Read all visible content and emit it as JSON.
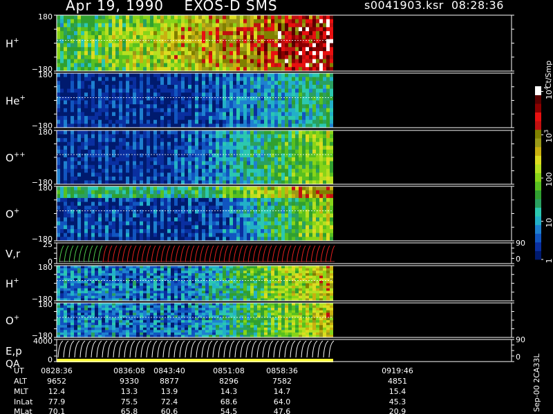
{
  "header": {
    "title": "Apr 19, 1990    EXOS-D SMS",
    "file_info": "s0041903.ksr  08:28:36"
  },
  "chart_data": {
    "type": "heatmap",
    "panels": [
      {
        "label": "H",
        "sup": "+",
        "ytop": "180",
        "ybot": "−180",
        "kind": "spec",
        "palette": "h1"
      },
      {
        "label": "He",
        "sup": "+",
        "ytop": "180",
        "ybot": "−180",
        "kind": "spec",
        "palette": "he"
      },
      {
        "label": "O",
        "sup": "++",
        "ytop": "180",
        "ybot": "−180",
        "kind": "spec",
        "palette": "o2"
      },
      {
        "label": "O",
        "sup": "+",
        "ytop": "180",
        "ybot": "−180",
        "kind": "spec",
        "palette": "o1"
      },
      {
        "label": "V,r",
        "sup": "",
        "ytop": "25",
        "ybot": "0",
        "rtop": "90",
        "rbot": "0",
        "kind": "vr"
      },
      {
        "label": "H",
        "sup": "+",
        "ytop": "180",
        "ybot": "−180",
        "kind": "spec",
        "palette": "h2"
      },
      {
        "label": "O",
        "sup": "+",
        "ytop": "180",
        "ybot": "−180",
        "kind": "spec",
        "palette": "o3"
      },
      {
        "label": "E,p",
        "label2": "QA",
        "sup": "",
        "ytop": "4000",
        "ybot": "0",
        "rtop": "90",
        "rbot": "0",
        "kind": "ep"
      }
    ],
    "colorbar": {
      "unit": "Ct/Smp",
      "ticks": [
        {
          "value": "10",
          "sup": "4"
        },
        {
          "value": "10",
          "sup": "3"
        },
        {
          "value": "100",
          "sup": ""
        },
        {
          "value": "10",
          "sup": ""
        },
        {
          "value": "1",
          "sup": ""
        }
      ],
      "colors": [
        "#001a6e",
        "#0a2fa0",
        "#1155c0",
        "#1e80d0",
        "#22b0c8",
        "#2bc8b0",
        "#2aa060",
        "#30a030",
        "#58c020",
        "#88d418",
        "#b6e020",
        "#dcdc20",
        "#c8b010",
        "#9a9a18",
        "#808000",
        "#c01010",
        "#e81010",
        "#8b0000",
        "#5a0000",
        "#ffffff"
      ]
    },
    "footer": {
      "row_labels": [
        "UT",
        "ALT",
        "MLT",
        "InLat",
        "MLat"
      ],
      "columns": [
        {
          "ut": "0828:36",
          "alt": "9652",
          "mlt": "12.4",
          "inlat": "77.9",
          "mlat": "70.1"
        },
        {
          "ut": "0836:08",
          "alt": "9330",
          "mlt": "13.3",
          "inlat": "75.5",
          "mlat": "65.8"
        },
        {
          "ut": "0843:40",
          "alt": "8877",
          "mlt": "13.9",
          "inlat": "72.4",
          "mlat": "60.6"
        },
        {
          "ut": "0851:08",
          "alt": "8296",
          "mlt": "14.3",
          "inlat": "68.6",
          "mlat": "54.5"
        },
        {
          "ut": "0858:36",
          "alt": "7582",
          "mlt": "14.7",
          "inlat": "64.0",
          "mlat": "47.6"
        },
        {
          "ut": "0919:46",
          "alt": "4851",
          "mlt": "15.4",
          "inlat": "45.3",
          "mlat": "20.9"
        }
      ],
      "stamp": "Sep-00  2CA33L"
    }
  }
}
